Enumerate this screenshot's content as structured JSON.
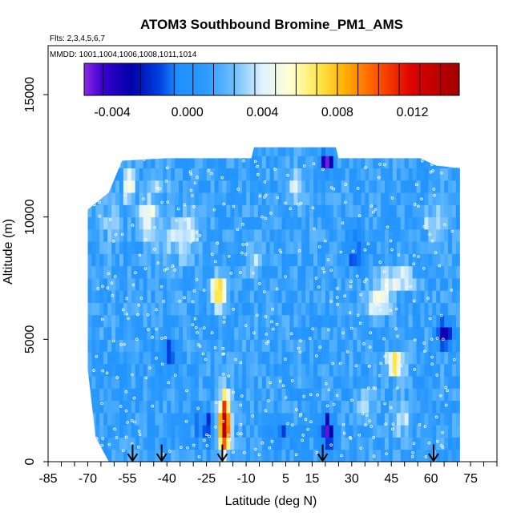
{
  "chart_data": {
    "type": "heatmap",
    "title": "ATOM3 Southbound Bromine_PM1_AMS",
    "flights_note": "Flts: 2,3,4,5,6,7",
    "dates_note": "MMDD: 1001,1004,1006,1008,1011,1014",
    "xlabel": "Latitude (deg N)",
    "ylabel": "Altitude (m)",
    "xlim": [
      -85,
      85
    ],
    "ylim": [
      0,
      17000
    ],
    "x_ticks": [
      -85,
      -70,
      -55,
      -40,
      -25,
      -10,
      5,
      15,
      30,
      45,
      60,
      75
    ],
    "x_minor_ticks": [
      -85,
      -80,
      -75,
      -70,
      -65,
      -60,
      -55,
      -50,
      -45,
      -40,
      -35,
      -30,
      -25,
      -20,
      -15,
      -10,
      -5,
      0,
      5,
      10,
      15,
      20,
      25,
      30,
      35,
      40,
      45,
      50,
      55,
      60,
      65,
      70,
      75,
      80,
      85
    ],
    "y_ticks": [
      0,
      5000,
      10000,
      15000
    ],
    "colorbar": {
      "ticks": [
        -0.004,
        0.0,
        0.004,
        0.008,
        0.012
      ],
      "tick_labels": [
        "-0.004",
        "0.000",
        "0.004",
        "0.008",
        "0.012"
      ],
      "min": -0.0055,
      "max": 0.0145,
      "segment_boundaries": [
        -0.0055,
        -0.0045,
        -0.0025,
        -0.0007,
        0.0003,
        0.0014,
        0.0025,
        0.0036,
        0.0047,
        0.0058,
        0.0069,
        0.008,
        0.0091,
        0.0102,
        0.0113,
        0.0124,
        0.0135,
        0.0145
      ],
      "stops": [
        {
          "v": -0.0055,
          "c": "#8a2be2"
        },
        {
          "v": -0.0045,
          "c": "#3a00d0"
        },
        {
          "v": -0.003,
          "c": "#0000a8"
        },
        {
          "v": -0.0015,
          "c": "#0040e0"
        },
        {
          "v": -0.0005,
          "c": "#1f8fff"
        },
        {
          "v": 0.001,
          "c": "#2b9bff"
        },
        {
          "v": 0.0025,
          "c": "#6fbfff"
        },
        {
          "v": 0.004,
          "c": "#dff2ff"
        },
        {
          "v": 0.0055,
          "c": "#ffffd0"
        },
        {
          "v": 0.007,
          "c": "#ffe84a"
        },
        {
          "v": 0.0085,
          "c": "#ffaa00"
        },
        {
          "v": 0.01,
          "c": "#ff5a00"
        },
        {
          "v": 0.012,
          "c": "#dd0000"
        },
        {
          "v": 0.0145,
          "c": "#a00000"
        }
      ]
    },
    "field": {
      "lat_range": [
        -70,
        71
      ],
      "background_value": 0.0011,
      "profile_top": [
        {
          "lat": -70,
          "alt": 10300
        },
        {
          "lat": -62,
          "alt": 11000
        },
        {
          "lat": -57,
          "alt": 12300
        },
        {
          "lat": -40,
          "alt": 12400
        },
        {
          "lat": -8,
          "alt": 12400
        },
        {
          "lat": -7,
          "alt": 12850
        },
        {
          "lat": 24,
          "alt": 12850
        },
        {
          "lat": 25,
          "alt": 12400
        },
        {
          "lat": 56,
          "alt": 12400
        },
        {
          "lat": 62,
          "alt": 12100
        },
        {
          "lat": 71,
          "alt": 12000
        }
      ],
      "profile_bottom": [
        {
          "lat": -70,
          "alt": 3800
        },
        {
          "lat": -67,
          "alt": 1000
        },
        {
          "lat": -62,
          "alt": 0
        },
        {
          "lat": 71,
          "alt": 0
        }
      ],
      "features": [
        {
          "lat": -19,
          "alt": 1000,
          "dlat": 2.5,
          "dalt": 900,
          "v": 0.0112
        },
        {
          "lat": -19,
          "alt": 2000,
          "dlat": 2.0,
          "dalt": 900,
          "v": 0.007
        },
        {
          "lat": -26,
          "alt": 1200,
          "dlat": 4.0,
          "dalt": 700,
          "v": -0.0016
        },
        {
          "lat": 20,
          "alt": 1000,
          "dlat": 2.5,
          "dalt": 600,
          "v": -0.0045
        },
        {
          "lat": 46,
          "alt": 3800,
          "dlat": 3.0,
          "dalt": 500,
          "v": 0.0085
        },
        {
          "lat": 39,
          "alt": 6300,
          "dlat": 4.0,
          "dalt": 500,
          "v": 0.0065
        },
        {
          "lat": 46,
          "alt": 7200,
          "dlat": 6.0,
          "dalt": 500,
          "v": 0.005
        },
        {
          "lat": -21,
          "alt": 6700,
          "dlat": 3.0,
          "dalt": 600,
          "v": 0.008
        },
        {
          "lat": -35,
          "alt": 9000,
          "dlat": 8.0,
          "dalt": 900,
          "v": 0.004
        },
        {
          "lat": -48,
          "alt": 9800,
          "dlat": 3.0,
          "dalt": 700,
          "v": 0.006
        },
        {
          "lat": -55,
          "alt": 11000,
          "dlat": 2.0,
          "dalt": 700,
          "v": 0.0055
        },
        {
          "lat": -44,
          "alt": 11200,
          "dlat": 4.0,
          "dalt": 500,
          "v": 0.003
        },
        {
          "lat": 20,
          "alt": 12000,
          "dlat": 2.5,
          "dalt": 400,
          "v": -0.005
        },
        {
          "lat": 65,
          "alt": 5000,
          "dlat": 3.0,
          "dalt": 500,
          "v": -0.004
        },
        {
          "lat": 8,
          "alt": 11000,
          "dlat": 4.0,
          "dalt": 700,
          "v": 0.0035
        },
        {
          "lat": 60,
          "alt": 9600,
          "dlat": 4.0,
          "dalt": 600,
          "v": 0.0035
        },
        {
          "lat": -62,
          "alt": 9500,
          "dlat": 3.0,
          "dalt": 800,
          "v": 0.003
        },
        {
          "lat": 3,
          "alt": 1000,
          "dlat": 4.0,
          "dalt": 600,
          "v": -0.001
        },
        {
          "lat": 48,
          "alt": 1500,
          "dlat": 4.0,
          "dalt": 800,
          "v": 0.0035
        },
        {
          "lat": 30,
          "alt": 8500,
          "dlat": 4.0,
          "dalt": 800,
          "v": -0.001
        },
        {
          "lat": 35,
          "alt": 2100,
          "dlat": 4.0,
          "dalt": 500,
          "v": 0.003
        },
        {
          "lat": -8,
          "alt": 8000,
          "dlat": 3.0,
          "dalt": 800,
          "v": 0.003
        },
        {
          "lat": -40,
          "alt": 4300,
          "dlat": 4.0,
          "dalt": 600,
          "v": -0.0012
        }
      ]
    },
    "arrow_latitudes": [
      -53,
      -42,
      -19,
      19,
      61
    ]
  }
}
